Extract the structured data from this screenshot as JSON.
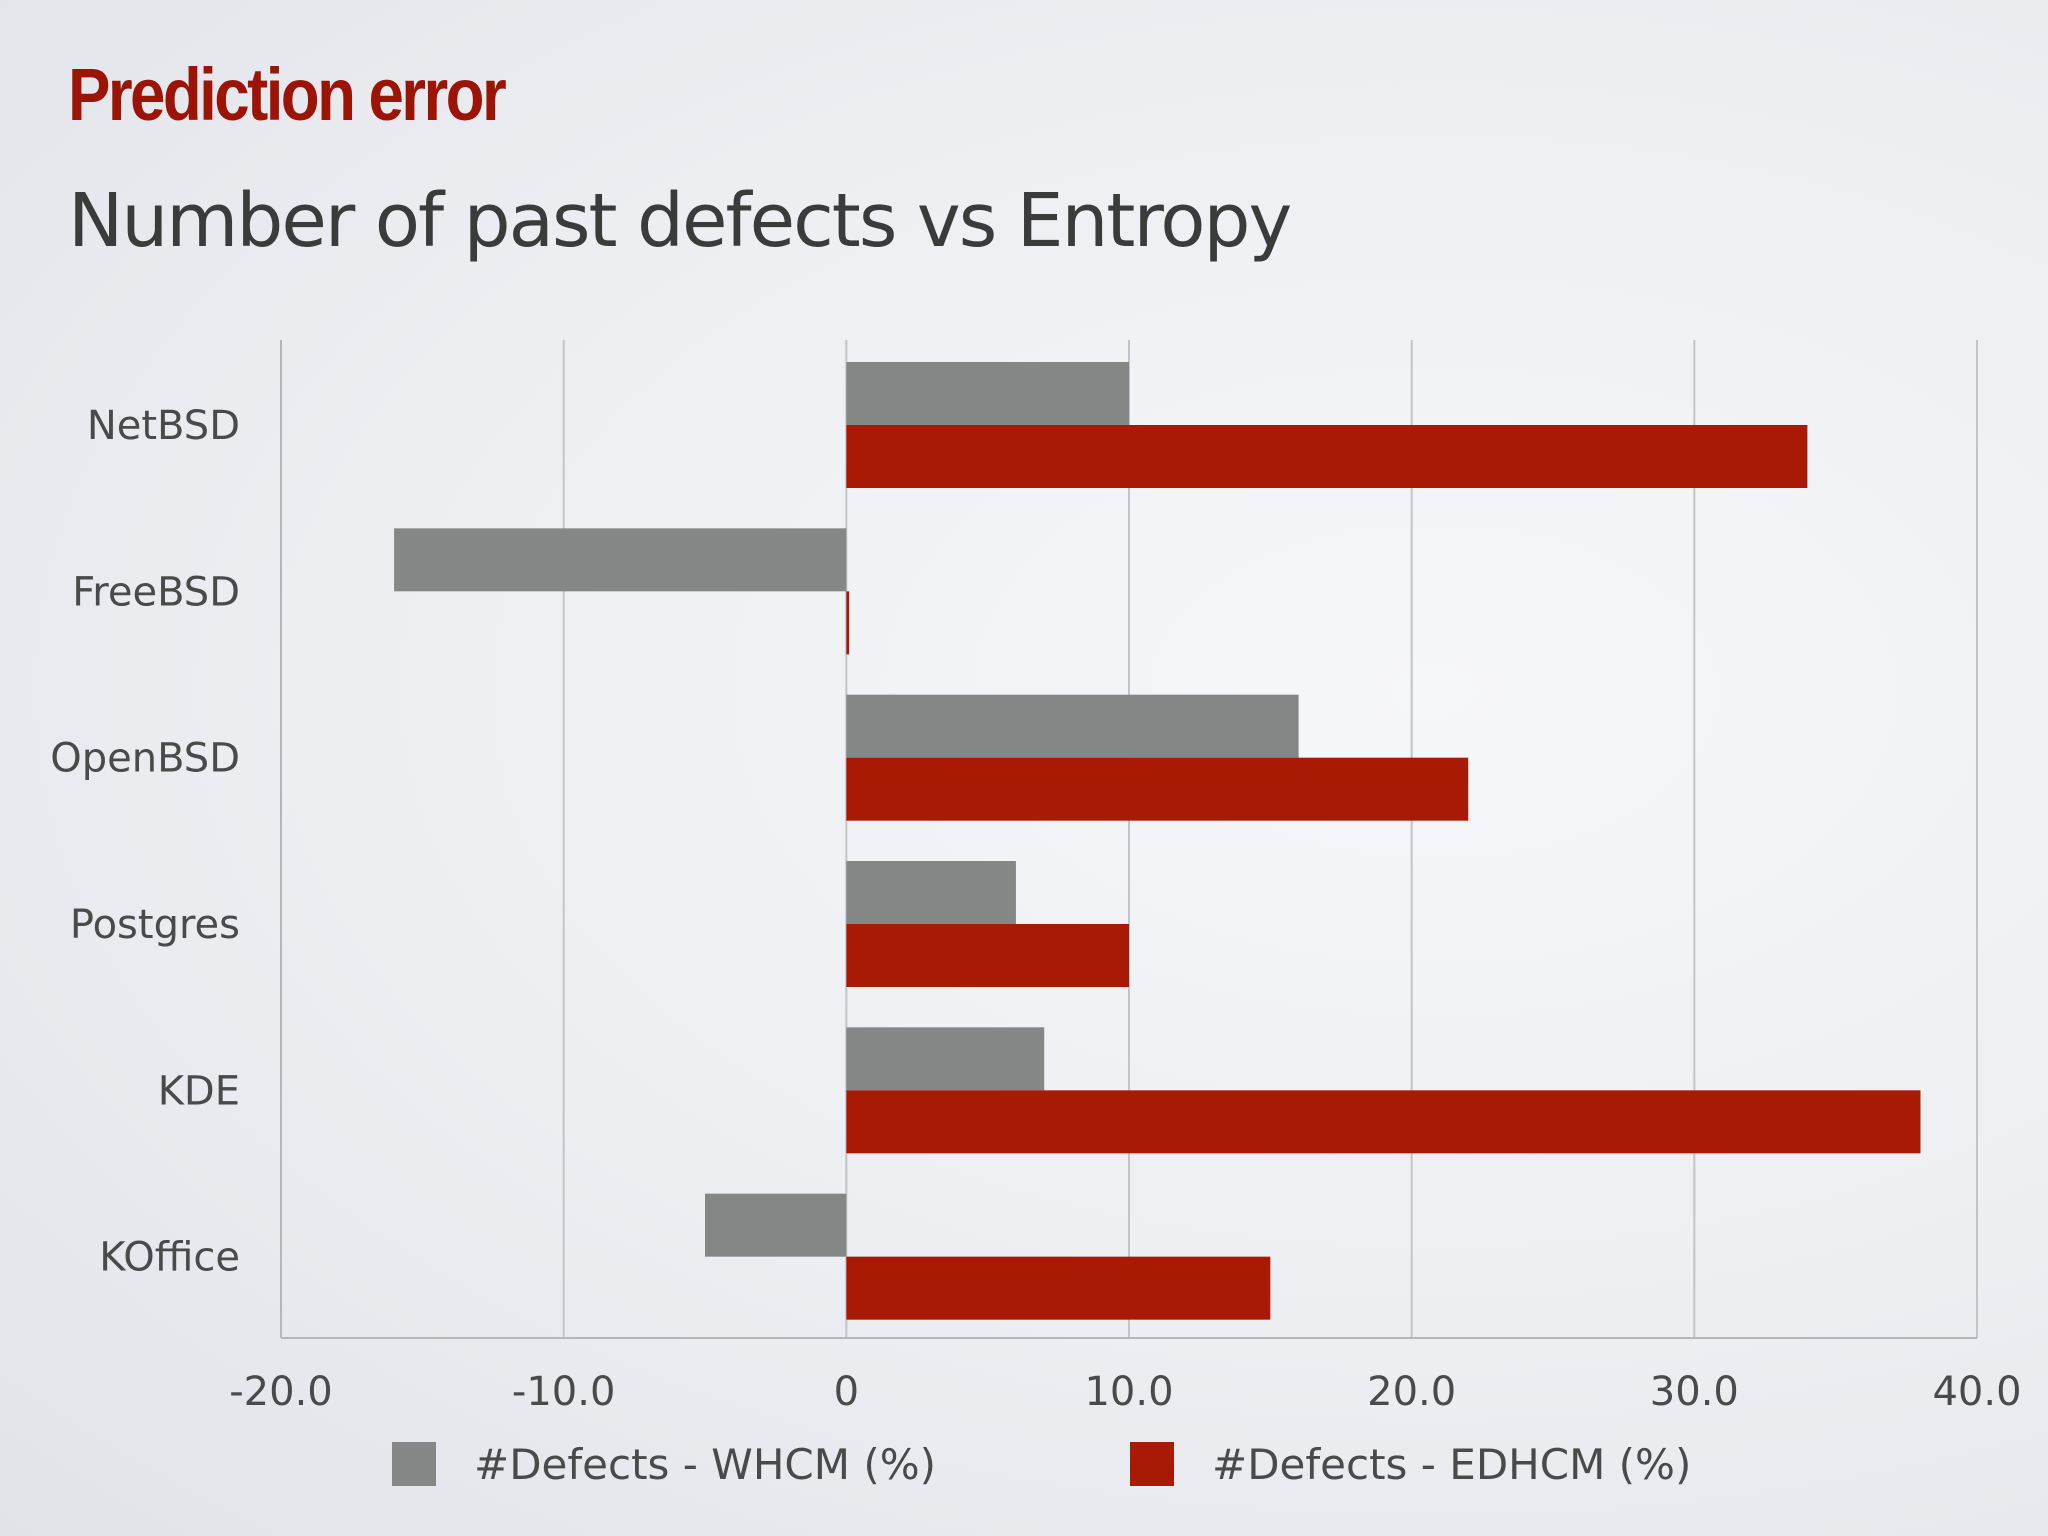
{
  "slide": {
    "title": "Prediction error",
    "subtitle": "Number of past defects vs Entropy"
  },
  "chart_data": {
    "type": "bar",
    "orientation": "horizontal",
    "categories": [
      "NetBSD",
      "FreeBSD",
      "OpenBSD",
      "Postgres",
      "KDE",
      "KOffice"
    ],
    "series": [
      {
        "name": "#Defects - WHCM (%)",
        "color": "#838887",
        "values": [
          10.0,
          -16.0,
          16.0,
          6.0,
          7.0,
          -5.0
        ]
      },
      {
        "name": "#Defects - EDHCM (%)",
        "color": "#a81a04",
        "values": [
          34.0,
          0.1,
          22.0,
          10.0,
          38.0,
          15.0
        ]
      }
    ],
    "xlim": [
      -20,
      40
    ],
    "xticks": [
      -20,
      -10,
      0,
      10,
      20,
      30,
      40
    ],
    "xtick_labels": [
      "-20.0",
      "-10.0",
      "0",
      "10.0",
      "20.0",
      "30.0",
      "40.0"
    ],
    "grid": "vertical",
    "legend_position": "bottom"
  }
}
